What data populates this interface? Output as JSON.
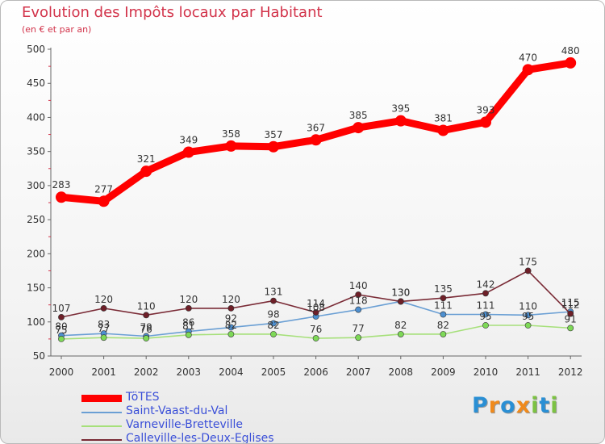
{
  "title": "Evolution des Impôts locaux par Habitant",
  "subtitle": "(en € et par an)",
  "logo": {
    "text": "Proxiti",
    "colors": [
      "#2a8fd4",
      "#f08a1c",
      "#2a8fd4",
      "#f08a1c",
      "#7cc242",
      "#2a8fd4",
      "#7cc242"
    ]
  },
  "chart_data": {
    "type": "line",
    "title": "Evolution des Impôts locaux par Habitant",
    "subtitle": "(en € et par an)",
    "x": [
      "2000",
      "2001",
      "2002",
      "2003",
      "2004",
      "2005",
      "2006",
      "2007",
      "2008",
      "2009",
      "2010",
      "2011",
      "2012"
    ],
    "ylim": [
      50,
      500
    ],
    "yticks": [
      50,
      100,
      150,
      200,
      250,
      300,
      350,
      400,
      450,
      500
    ],
    "grid": false,
    "legend_position": "bottom-left",
    "series": [
      {
        "name": "TöTES",
        "color": "#ff0000",
        "marker": "#ff0000",
        "thick": true,
        "values": [
          283,
          277,
          321,
          349,
          358,
          357,
          367,
          385,
          395,
          381,
          393,
          470,
          480
        ]
      },
      {
        "name": "Saint-Vaast-du-Val",
        "color": "#6a9fd4",
        "marker": "#4d8fd0",
        "thick": false,
        "values": [
          80,
          83,
          79,
          86,
          92,
          98,
          108,
          118,
          130,
          111,
          111,
          110,
          115
        ]
      },
      {
        "name": "Varneville-Bretteville",
        "color": "#a6e07a",
        "marker": "#7ed957",
        "thick": false,
        "values": [
          75,
          77,
          76,
          81,
          82,
          82,
          76,
          77,
          82,
          82,
          95,
          95,
          91
        ]
      },
      {
        "name": "Calleville-les-Deux-Eglises",
        "color": "#7a2b36",
        "marker": "#6e1f28",
        "thick": false,
        "values": [
          107,
          120,
          110,
          120,
          120,
          131,
          114,
          140,
          130,
          135,
          142,
          175,
          112
        ]
      }
    ]
  }
}
